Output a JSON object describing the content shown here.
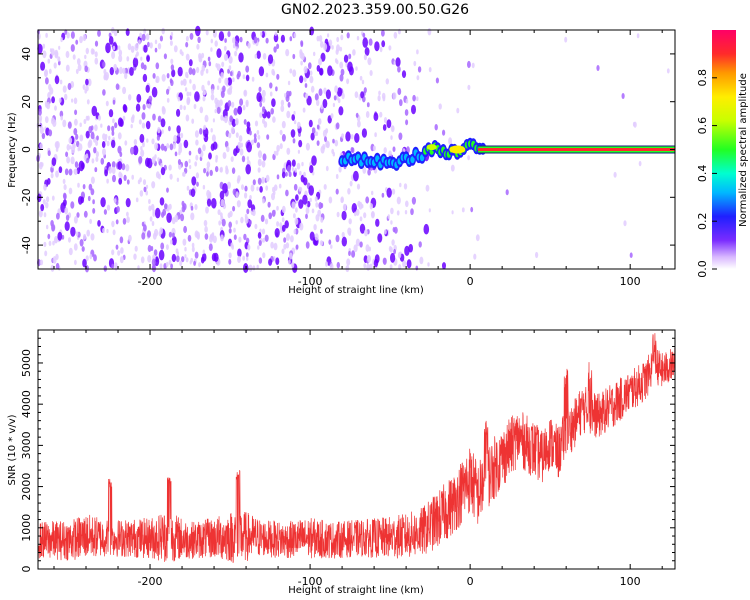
{
  "title": "GN02.2023.359.00.50.G26",
  "chart_data": [
    {
      "type": "heatmap",
      "xlabel": "Height of straight line (km)",
      "ylabel": "Frequency (Hz)",
      "xlim": [
        -270,
        128
      ],
      "ylim": [
        -50,
        50
      ],
      "xticks": [
        -200,
        -100,
        0,
        100
      ],
      "yticks": [
        -40,
        -20,
        0,
        20,
        40
      ],
      "colorbar": {
        "label": "Normalized spectral amplitude",
        "range": [
          0.0,
          1.0
        ],
        "ticks": [
          0.0,
          0.2,
          0.4,
          0.6,
          0.8
        ]
      },
      "signal": {
        "frequency_hz": 0,
        "description": "strong narrow peak near 0 Hz from about -55 km up to 128 km",
        "trace": [
          {
            "x": -80,
            "y": -4
          },
          {
            "x": -60,
            "y": -5
          },
          {
            "x": -50,
            "y": -6
          },
          {
            "x": -40,
            "y": -4
          },
          {
            "x": -30,
            "y": -2
          },
          {
            "x": -22,
            "y": 1
          },
          {
            "x": -15,
            "y": -2
          },
          {
            "x": -8,
            "y": -1
          },
          {
            "x": 0,
            "y": 1
          },
          {
            "x": 10,
            "y": 0
          },
          {
            "x": 128,
            "y": 0
          }
        ]
      },
      "grid": false
    },
    {
      "type": "line",
      "xlabel": "Height of straight line (km)",
      "ylabel": "SNR (10 * v/v)",
      "xlim": [
        -270,
        128
      ],
      "ylim": [
        0,
        5800
      ],
      "xticks": [
        -200,
        -100,
        0,
        100
      ],
      "yticks": [
        0,
        1000,
        2000,
        3000,
        4000,
        5000
      ],
      "color": "#ee3333",
      "series": [
        {
          "x": [
            -270,
            -250,
            -240,
            -225,
            -200,
            -190,
            -175,
            -160,
            -145,
            -130,
            -115,
            -100,
            -85,
            -70,
            -55,
            -40,
            -30,
            -20,
            -10,
            0,
            5,
            10,
            20,
            30,
            40,
            45,
            50,
            55,
            60,
            65,
            70,
            80,
            90,
            100,
            110,
            115,
            120,
            128
          ],
          "center": [
            700,
            700,
            800,
            750,
            750,
            800,
            700,
            750,
            800,
            750,
            700,
            750,
            700,
            750,
            750,
            800,
            900,
            1200,
            1600,
            2200,
            1800,
            2200,
            2700,
            3200,
            2900,
            2700,
            3100,
            2800,
            3300,
            3500,
            3900,
            3700,
            4000,
            4300,
            4600,
            5000,
            4800,
            5000
          ],
          "spread": [
            450,
            500,
            550,
            450,
            500,
            650,
            450,
            500,
            700,
            450,
            450,
            500,
            450,
            450,
            500,
            550,
            600,
            700,
            750,
            850,
            800,
            800,
            750,
            700,
            700,
            650,
            650,
            650,
            600,
            600,
            600,
            550,
            550,
            500,
            500,
            450,
            450,
            400
          ],
          "peaks": [
            {
              "x": -225,
              "y": 2200
            },
            {
              "x": -188,
              "y": 2250
            },
            {
              "x": -145,
              "y": 2400
            },
            {
              "x": 10,
              "y": 3600
            },
            {
              "x": 60,
              "y": 4900
            },
            {
              "x": 75,
              "y": 5100
            },
            {
              "x": 115,
              "y": 5750
            }
          ]
        }
      ],
      "grid": false
    }
  ]
}
